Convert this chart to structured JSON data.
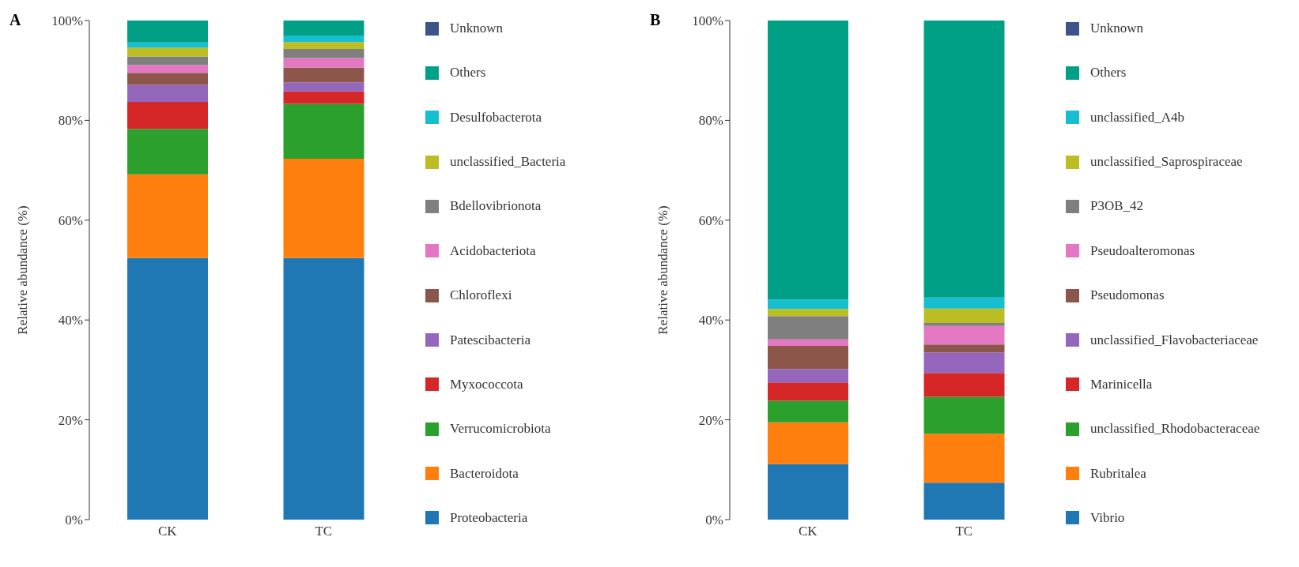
{
  "chart_data": [
    {
      "type": "bar",
      "stacked": true,
      "annotations": [
        "A"
      ],
      "ylabel": "Relative abundance (%)",
      "categories": [
        "CK",
        "TC"
      ],
      "ylim": [
        0,
        100
      ],
      "yticks": [
        {
          "value": 0,
          "label": "0%"
        },
        {
          "value": 20,
          "label": "20%"
        },
        {
          "value": 40,
          "label": "40%"
        },
        {
          "value": 60,
          "label": "60%"
        },
        {
          "value": 80,
          "label": "80%"
        },
        {
          "value": 100,
          "label": "100%"
        }
      ],
      "legend": "right",
      "grid": false,
      "series": [
        {
          "name": "Proteobacteria",
          "color": "#1f77b4",
          "values": [
            52.4,
            52.4
          ]
        },
        {
          "name": "Bacteroidota",
          "color": "#ff7f0e",
          "values": [
            16.8,
            19.9
          ]
        },
        {
          "name": "Verrucomicrobiota",
          "color": "#2ca02c",
          "values": [
            9.1,
            11.0
          ]
        },
        {
          "name": "Myxococcota",
          "color": "#d62728",
          "values": [
            5.4,
            2.5
          ]
        },
        {
          "name": "Patescibacteria",
          "color": "#9467bd",
          "values": [
            3.4,
            1.8
          ]
        },
        {
          "name": "Chloroflexi",
          "color": "#8c564b",
          "values": [
            2.4,
            3.0
          ]
        },
        {
          "name": "Acidobacteriota",
          "color": "#e377c2",
          "values": [
            1.6,
            1.9
          ]
        },
        {
          "name": "Bdellovibrionota",
          "color": "#7f7f7f",
          "values": [
            1.7,
            1.8
          ]
        },
        {
          "name": "unclassified_Bacteria",
          "color": "#bcbd22",
          "values": [
            1.8,
            1.4
          ]
        },
        {
          "name": "Desulfobacterota",
          "color": "#17becf",
          "values": [
            1.0,
            1.3
          ]
        },
        {
          "name": "Others",
          "color": "#00a087",
          "values": [
            4.4,
            3.0
          ]
        },
        {
          "name": "Unknown",
          "color": "#3c5488",
          "values": [
            0,
            0
          ]
        }
      ]
    },
    {
      "type": "bar",
      "stacked": true,
      "annotations": [
        "B"
      ],
      "ylabel": "Relative abundance (%)",
      "categories": [
        "CK",
        "TC"
      ],
      "ylim": [
        0,
        100
      ],
      "yticks": [
        {
          "value": 0,
          "label": "0%"
        },
        {
          "value": 20,
          "label": "20%"
        },
        {
          "value": 40,
          "label": "40%"
        },
        {
          "value": 60,
          "label": "60%"
        },
        {
          "value": 80,
          "label": "80%"
        },
        {
          "value": 100,
          "label": "100%"
        }
      ],
      "legend": "right",
      "grid": false,
      "series": [
        {
          "name": "Vibrio",
          "color": "#1f77b4",
          "values": [
            11.1,
            7.4
          ]
        },
        {
          "name": "Rubritalea",
          "color": "#ff7f0e",
          "values": [
            8.4,
            9.8
          ]
        },
        {
          "name": "unclassified_Rhodobacteraceae",
          "color": "#2ca02c",
          "values": [
            4.3,
            7.4
          ]
        },
        {
          "name": "Marinicella",
          "color": "#d62728",
          "values": [
            3.7,
            4.8
          ]
        },
        {
          "name": "unclassified_Flavobacteriaceae",
          "color": "#9467bd",
          "values": [
            2.7,
            4.1
          ]
        },
        {
          "name": "Pseudomonas",
          "color": "#8c564b",
          "values": [
            4.6,
            1.6
          ]
        },
        {
          "name": "Pseudoalteromonas",
          "color": "#e377c2",
          "values": [
            1.3,
            3.7
          ]
        },
        {
          "name": "P3OB_42",
          "color": "#7f7f7f",
          "values": [
            4.7,
            0.6
          ]
        },
        {
          "name": "unclassified_Saprospiraceae",
          "color": "#bcbd22",
          "values": [
            1.4,
            2.9
          ]
        },
        {
          "name": "unclassified_A4b",
          "color": "#17becf",
          "values": [
            1.9,
            2.2
          ]
        },
        {
          "name": "Others",
          "color": "#00a087",
          "values": [
            55.9,
            55.5
          ]
        },
        {
          "name": "Unknown",
          "color": "#3c5488",
          "values": [
            0,
            0
          ]
        }
      ]
    }
  ]
}
